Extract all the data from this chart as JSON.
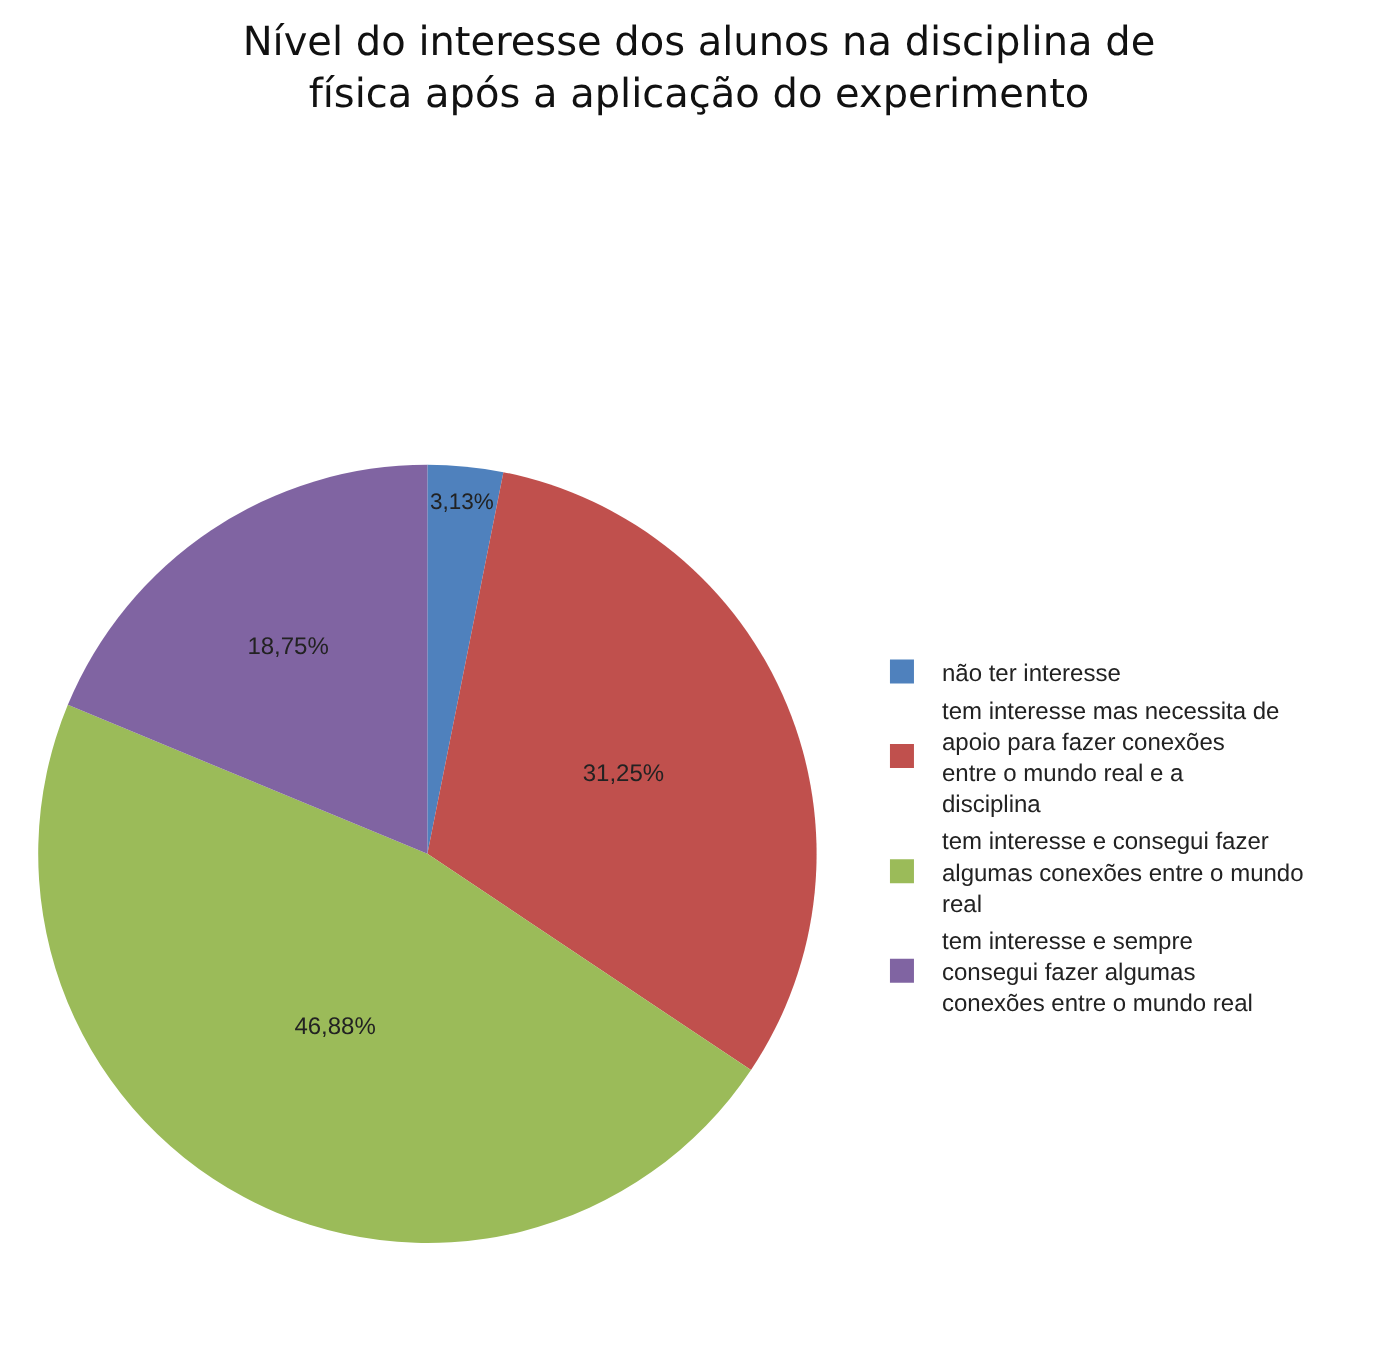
{
  "chart_data": {
    "type": "pie",
    "title": "Nível do interesse dos alunos na disciplina de física após a aplicação do experimento",
    "categories": [
      "não ter interesse",
      "tem interesse mas necessita de apoio para fazer conexões entre o mundo real e a disciplina",
      "tem interesse e consegui fazer algumas conexões entre o mundo real",
      "tem interesse e sempre consegui fazer algumas conexões entre o mundo real"
    ],
    "values": [
      3.13,
      31.25,
      46.88,
      18.75
    ],
    "value_labels": [
      "3,13%",
      "31,25%",
      "46,88%",
      "18,75%"
    ],
    "colors": [
      "#4f81bd",
      "#c0504d",
      "#9bbb59",
      "#8064a2"
    ],
    "legend": "right"
  }
}
